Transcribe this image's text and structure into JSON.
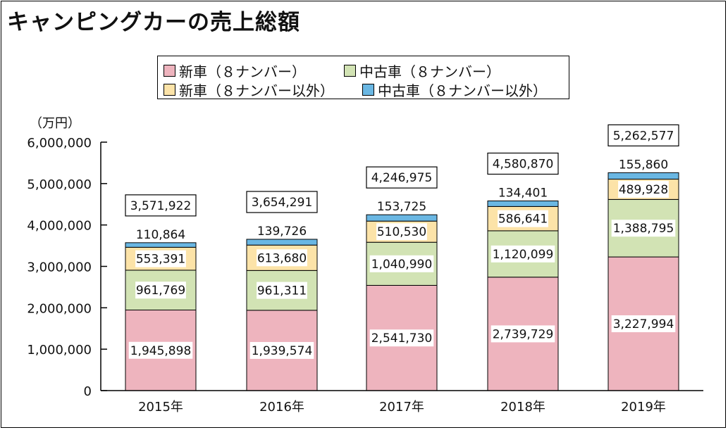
{
  "chart_data": {
    "type": "bar",
    "stacked": true,
    "title": "キャンピングカーの売上総額",
    "ylabel": "（万円）",
    "ylim": [
      0,
      6000000
    ],
    "yticks": [
      "0",
      "1,000,000",
      "2,000,000",
      "3,000,000",
      "4,000,000",
      "5,000,000",
      "6,000,000"
    ],
    "ytick_values": [
      0,
      1000000,
      2000000,
      3000000,
      4000000,
      5000000,
      6000000
    ],
    "categories": [
      "2015年",
      "2016年",
      "2017年",
      "2018年",
      "2019年"
    ],
    "series": [
      {
        "name": "新車（８ナンバー）",
        "color": "#eeb4be",
        "values": [
          1945898,
          1939574,
          2541730,
          2739729,
          3227994
        ],
        "labels": [
          "1,945,898",
          "1,939,574",
          "2,541,730",
          "2,739,729",
          "3,227,994"
        ]
      },
      {
        "name": "中古車（８ナンバー）",
        "color": "#d2e3b4",
        "values": [
          961769,
          961311,
          1040990,
          1120099,
          1388795
        ],
        "labels": [
          "961,769",
          "961,311",
          "1,040,990",
          "1,120,099",
          "1,388,795"
        ]
      },
      {
        "name": "新車（８ナンバー以外）",
        "color": "#fce3a8",
        "values": [
          553391,
          613680,
          510530,
          586641,
          489928
        ],
        "labels": [
          "553,391",
          "613,680",
          "510,530",
          "586,641",
          "489,928"
        ]
      },
      {
        "name": "中古車（８ナンバー以外）",
        "color": "#6ab7e3",
        "values": [
          110864,
          139726,
          153725,
          134401,
          155860
        ],
        "labels": [
          "110,864",
          "139,726",
          "153,725",
          "134,401",
          "155,860"
        ]
      }
    ],
    "totals": [
      3571922,
      3654291,
      4246975,
      4580870,
      5262577
    ],
    "total_labels": [
      "3,571,922",
      "3,654,291",
      "4,246,975",
      "4,580,870",
      "5,262,577"
    ],
    "legend": "top-center",
    "grid": false
  }
}
